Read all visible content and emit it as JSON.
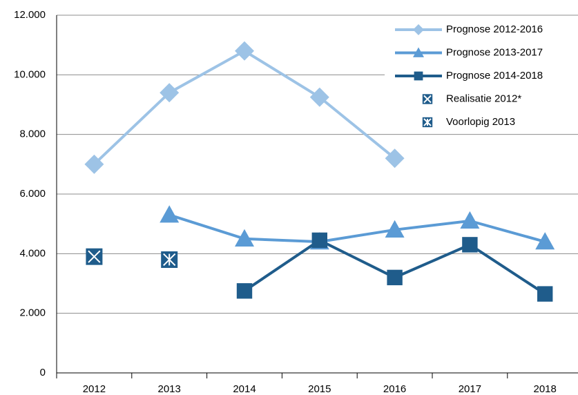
{
  "chart_data": {
    "type": "line",
    "categories": [
      "2012",
      "2013",
      "2014",
      "2015",
      "2016",
      "2017",
      "2018"
    ],
    "series": [
      {
        "name": "Prognose 2012-2016",
        "color": "#9dc3e6",
        "marker": "diamond",
        "line": true,
        "values": [
          7000,
          9400,
          10800,
          9250,
          7200,
          null,
          null
        ]
      },
      {
        "name": "Prognose 2013-2017",
        "color": "#5b9bd5",
        "marker": "triangle",
        "line": true,
        "values": [
          null,
          5300,
          4500,
          4400,
          4800,
          5100,
          4400
        ]
      },
      {
        "name": "Prognose 2014-2018",
        "color": "#1f5c8b",
        "marker": "square",
        "line": true,
        "values": [
          null,
          null,
          2750,
          4450,
          3200,
          4300,
          2650
        ]
      },
      {
        "name": "Realisatie 2012*",
        "color": "#1f5c8b",
        "marker": "cross",
        "line": false,
        "values": [
          3900,
          null,
          null,
          null,
          null,
          null,
          null
        ]
      },
      {
        "name": "Voorlopig 2013",
        "color": "#1f5c8b",
        "marker": "star",
        "line": false,
        "values": [
          null,
          3800,
          null,
          null,
          null,
          null,
          null
        ]
      }
    ],
    "ylim": [
      0,
      12000
    ],
    "yticks": [
      0,
      {
        "value": 2000,
        "label": "2.000"
      },
      {
        "value": 4000,
        "label": "4.000"
      },
      {
        "value": 6000,
        "label": "6.000"
      },
      {
        "value": 8000,
        "label": "8.000"
      },
      {
        "value": 10000,
        "label": "10.000"
      },
      {
        "value": 12000,
        "label": "12.000"
      }
    ],
    "grid": true,
    "legend": "top-right"
  }
}
